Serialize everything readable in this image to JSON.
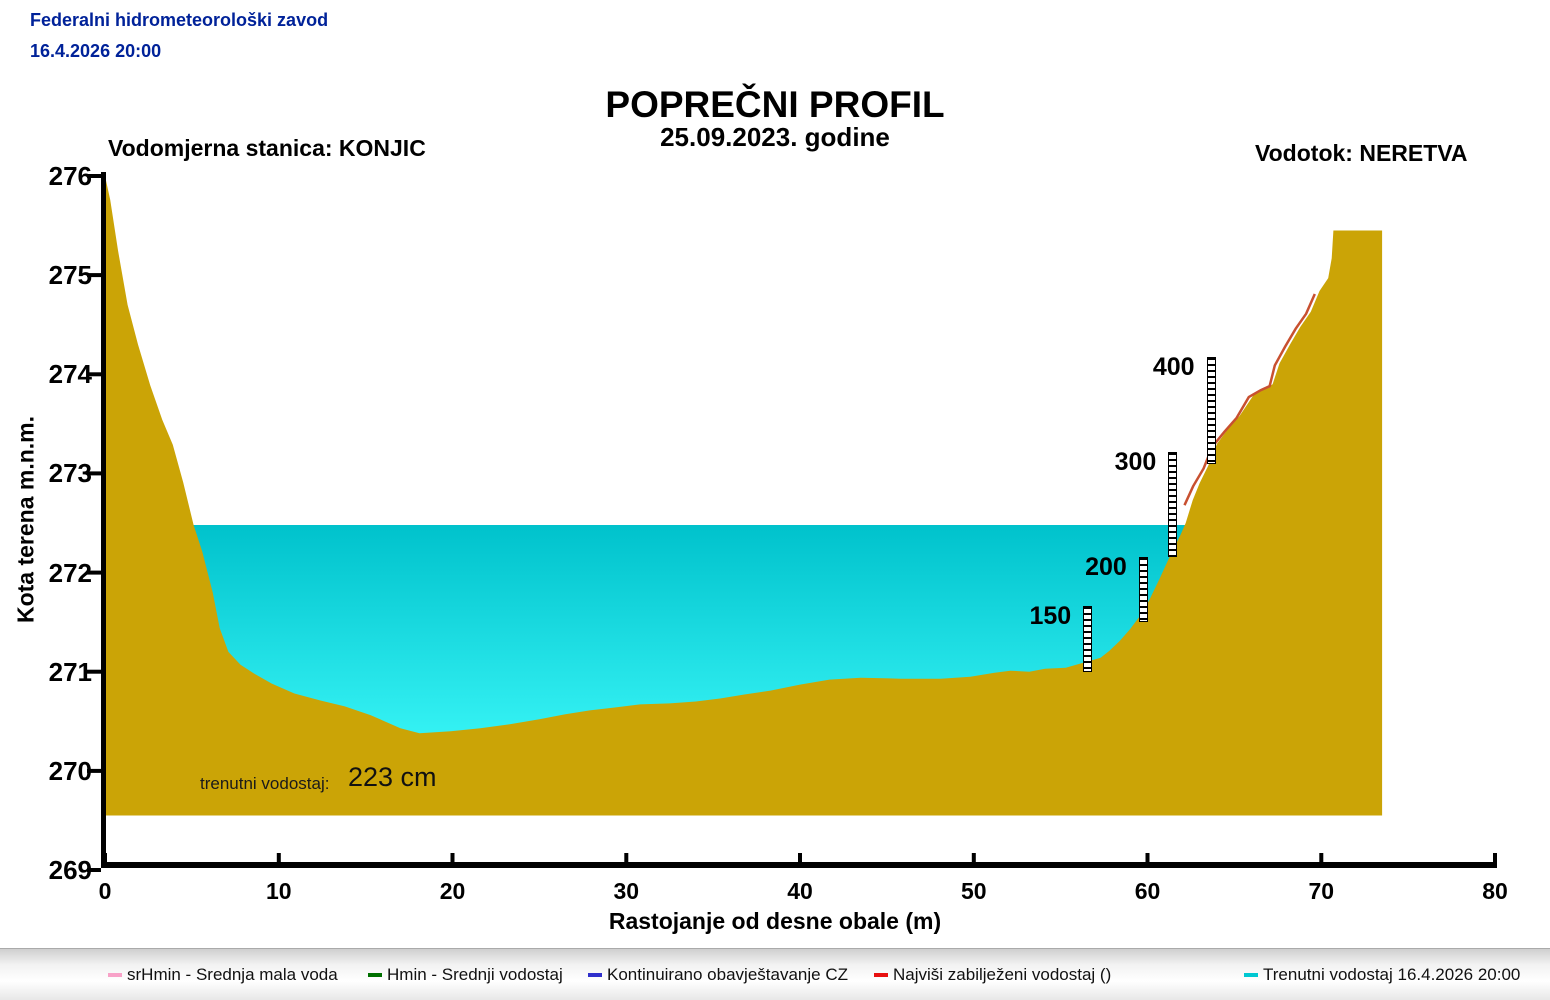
{
  "header": {
    "org": "Federalni hidrometeorološki zavod",
    "datetime": "16.4.2026 20:00"
  },
  "title": {
    "main": "POPREČNI PROFIL",
    "date_line": "25.09.2023. godine"
  },
  "station_label": "Vodomjerna stanica: KONJIC",
  "river_label": "Vodotok: NERETVA",
  "current_level": {
    "label": "trenutni vodostaj:",
    "value": "223 cm"
  },
  "axes": {
    "y_label": "Kota terena m.n.m.",
    "x_label": "Rastojanje od desne obale (m)",
    "y_ticks": [
      276,
      275,
      274,
      273,
      272,
      271,
      270,
      269
    ],
    "x_ticks": [
      0,
      10,
      20,
      30,
      40,
      50,
      60,
      70,
      80
    ]
  },
  "colors": {
    "terrain": "#CBA406",
    "water_top": "#00C2CC",
    "water_bottom": "#40FCFC",
    "header_text": "#002299",
    "axis": "#000000",
    "max_line": "#C85030"
  },
  "chart_data": {
    "type": "area",
    "title": "POPREČNI PROFIL",
    "subtitle": "25.09.2023. godine",
    "xlabel": "Rastojanje od desne obale (m)",
    "ylabel": "Kota terena m.n.m.",
    "xlim": [
      0,
      80
    ],
    "ylim": [
      269,
      276
    ],
    "grid": false,
    "current_level_cm": 223,
    "water_surface_elev": 272.48,
    "water_extent_m": [
      4.5,
      63.0
    ],
    "terrain_base_elev": 269.55,
    "terrain_profile": [
      [
        0,
        276
      ],
      [
        0.3,
        275.76
      ],
      [
        0.75,
        275.25
      ],
      [
        1.3,
        274.7
      ],
      [
        1.9,
        274.3
      ],
      [
        2.6,
        273.89
      ],
      [
        3.3,
        273.54
      ],
      [
        3.9,
        273.29
      ],
      [
        4.5,
        272.91
      ],
      [
        5.1,
        272.48
      ],
      [
        5.6,
        272.21
      ],
      [
        6.2,
        271.8
      ],
      [
        6.6,
        271.44
      ],
      [
        7.1,
        271.2
      ],
      [
        7.8,
        271.07
      ],
      [
        8.6,
        270.98
      ],
      [
        9.6,
        270.88
      ],
      [
        10.9,
        270.78
      ],
      [
        12.4,
        270.71
      ],
      [
        13.8,
        270.65
      ],
      [
        15.3,
        270.56
      ],
      [
        17,
        270.43
      ],
      [
        18.1,
        270.38
      ],
      [
        19.9,
        270.4
      ],
      [
        21.6,
        270.43
      ],
      [
        23.3,
        270.47
      ],
      [
        25,
        270.52
      ],
      [
        26.5,
        270.57
      ],
      [
        27.9,
        270.61
      ],
      [
        29.4,
        270.64
      ],
      [
        30.8,
        270.67
      ],
      [
        32.5,
        270.68
      ],
      [
        34,
        270.7
      ],
      [
        35.4,
        270.73
      ],
      [
        36.8,
        270.77
      ],
      [
        38.3,
        270.81
      ],
      [
        40,
        270.87
      ],
      [
        41.7,
        270.92
      ],
      [
        43.5,
        270.94
      ],
      [
        45.8,
        270.93
      ],
      [
        48.1,
        270.93
      ],
      [
        49.8,
        270.95
      ],
      [
        51.2,
        270.99
      ],
      [
        52.1,
        271.01
      ],
      [
        53.2,
        271
      ],
      [
        54.1,
        271.03
      ],
      [
        55.3,
        271.04
      ],
      [
        56.1,
        271.08
      ],
      [
        56.7,
        271.11
      ],
      [
        57.3,
        271.14
      ],
      [
        57.8,
        271.21
      ],
      [
        58.4,
        271.31
      ],
      [
        59,
        271.43
      ],
      [
        59.6,
        271.57
      ],
      [
        60.1,
        271.72
      ],
      [
        60.7,
        271.94
      ],
      [
        61.3,
        272.17
      ],
      [
        61.9,
        272.38
      ],
      [
        62.2,
        272.5
      ],
      [
        62.6,
        272.73
      ],
      [
        63,
        272.9
      ],
      [
        63.5,
        273.08
      ],
      [
        64,
        273.3
      ],
      [
        64.6,
        273.44
      ],
      [
        65.3,
        273.58
      ],
      [
        66.1,
        273.79
      ],
      [
        66.8,
        273.86
      ],
      [
        67.2,
        273.9
      ],
      [
        67.6,
        274.11
      ],
      [
        68.2,
        274.3
      ],
      [
        68.8,
        274.48
      ],
      [
        69.4,
        274.63
      ],
      [
        69.9,
        274.84
      ],
      [
        70.4,
        274.97
      ],
      [
        70.6,
        275.17
      ],
      [
        70.7,
        275.45
      ],
      [
        73.5,
        275.45
      ]
    ],
    "max_recorded_line": [
      [
        62.3,
        272.68
      ],
      [
        62.8,
        272.87
      ],
      [
        63.4,
        273.05
      ],
      [
        63.9,
        273.27
      ],
      [
        64.6,
        273.42
      ],
      [
        65.3,
        273.56
      ],
      [
        66,
        273.77
      ],
      [
        66.7,
        273.84
      ],
      [
        67.2,
        273.88
      ],
      [
        67.5,
        274.09
      ],
      [
        68.1,
        274.28
      ],
      [
        68.7,
        274.46
      ],
      [
        69.3,
        274.61
      ],
      [
        69.8,
        274.81
      ]
    ],
    "gauges": [
      {
        "label": "150",
        "x_m": 56.3,
        "top_elev": 271.66,
        "bottom_elev": 271.0
      },
      {
        "label": "200",
        "x_m": 59.5,
        "top_elev": 272.16,
        "bottom_elev": 271.5
      },
      {
        "label": "300",
        "x_m": 61.2,
        "top_elev": 273.22,
        "bottom_elev": 272.16
      },
      {
        "label": "400",
        "x_m": 63.4,
        "top_elev": 274.17,
        "bottom_elev": 273.1
      }
    ]
  },
  "legend": {
    "items": [
      {
        "label": "srHmin - Srednja mala voda",
        "color": "#F8A2C8"
      },
      {
        "label": "Hmin - Srednji vodostaj",
        "color": "#007000"
      },
      {
        "label": "Kontinuirano obavještavanje CZ",
        "color": "#3030CC"
      },
      {
        "label": "Najviši zabilježeni vodostaj ()",
        "color": "#E81010"
      },
      {
        "label": "Trenutni vodostaj 16.4.2026 20:00",
        "color": "#00C8D2"
      }
    ]
  }
}
